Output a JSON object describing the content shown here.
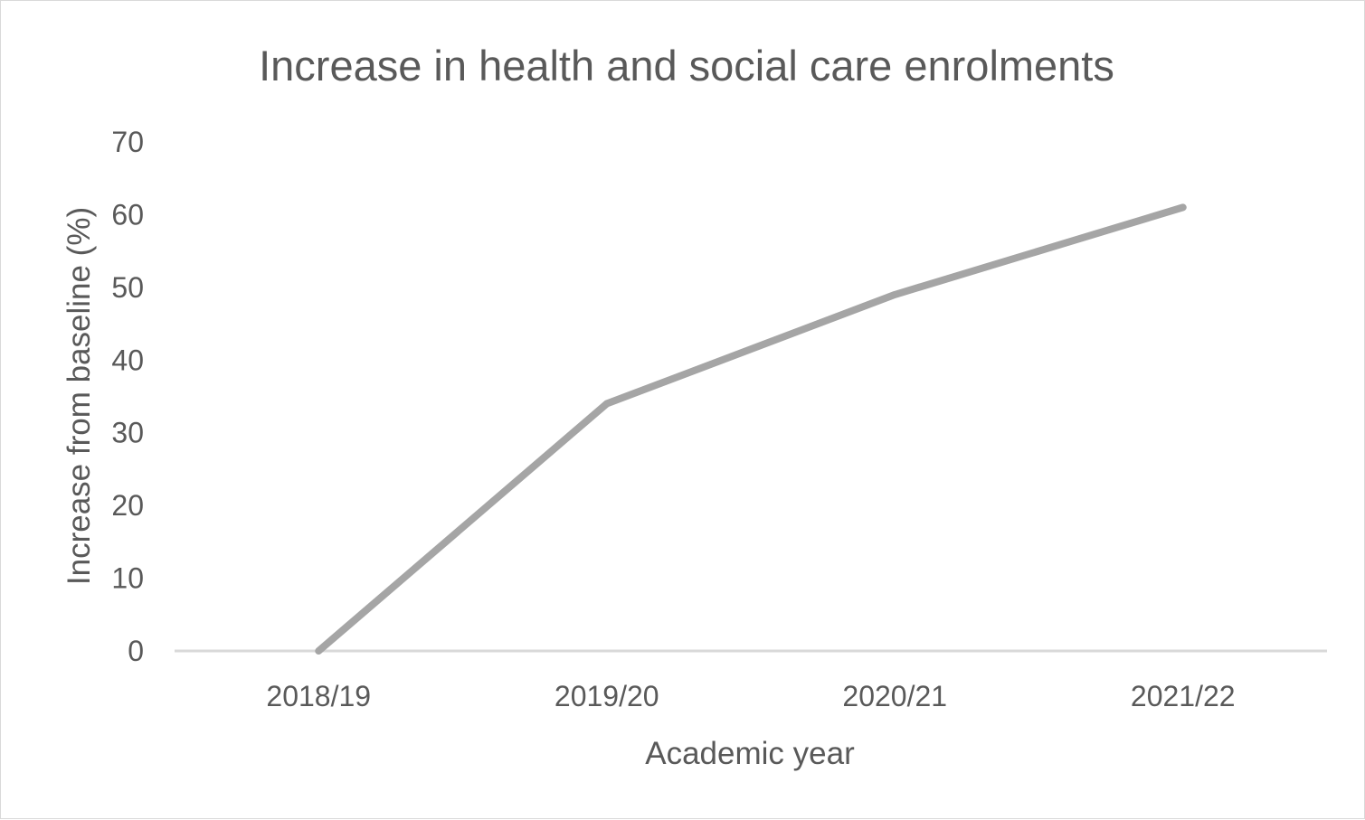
{
  "chart_data": {
    "type": "line",
    "title": "Increase in health and social care enrolments",
    "xlabel": "Academic year",
    "ylabel": "Increase from baseline (%)",
    "categories": [
      "2018/19",
      "2019/20",
      "2020/21",
      "2021/22"
    ],
    "series": [
      {
        "values": [
          0,
          34,
          49,
          61
        ],
        "color": "#a5a5a5"
      }
    ],
    "ylim": [
      0,
      70
    ],
    "yticks": [
      "0",
      "10",
      "20",
      "30",
      "40",
      "50",
      "60",
      "70"
    ],
    "grid": false,
    "legend": "none",
    "axis_color": "#d9d9d9",
    "text_color": "#595959"
  }
}
